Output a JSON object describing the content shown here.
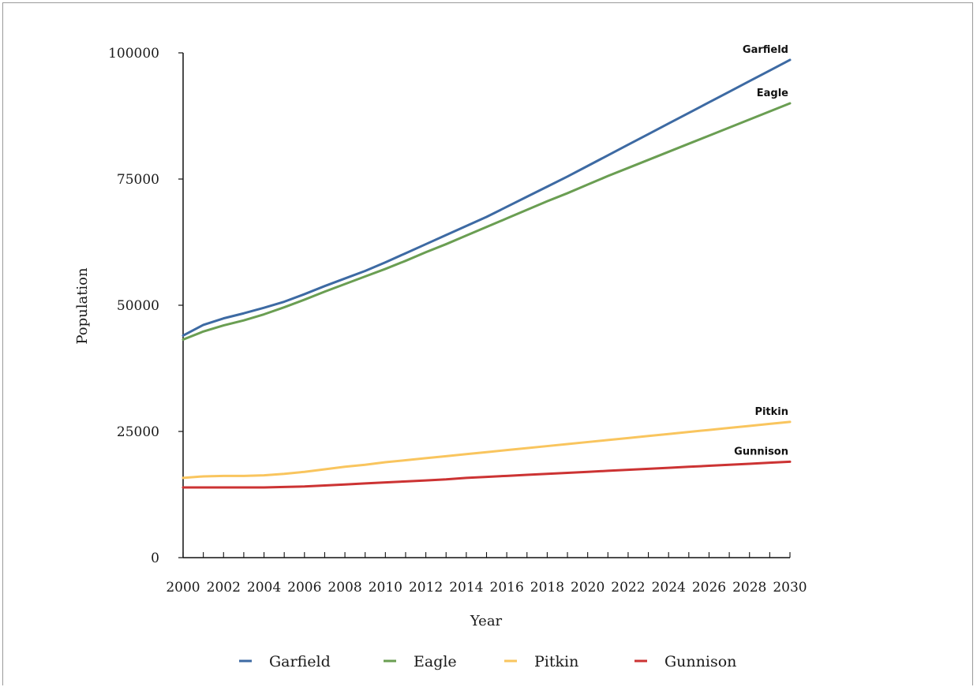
{
  "chart_data": {
    "type": "line",
    "xlabel": "Year",
    "ylabel": "Population",
    "xlim": [
      2000,
      2030
    ],
    "ylim": [
      0,
      100000
    ],
    "x_ticks": [
      2000,
      2002,
      2004,
      2006,
      2008,
      2010,
      2012,
      2014,
      2016,
      2018,
      2020,
      2022,
      2024,
      2026,
      2028,
      2030
    ],
    "y_ticks": [
      0,
      25000,
      50000,
      75000,
      100000
    ],
    "legend_position": "bottom",
    "grid": false,
    "x": [
      2000,
      2001,
      2002,
      2003,
      2004,
      2005,
      2006,
      2007,
      2008,
      2009,
      2010,
      2011,
      2012,
      2013,
      2014,
      2015,
      2016,
      2017,
      2018,
      2019,
      2020,
      2021,
      2022,
      2023,
      2024,
      2025,
      2026,
      2027,
      2028,
      2029,
      2030
    ],
    "series": [
      {
        "name": "Garfield",
        "color": "#3d6aa3",
        "values": [
          44000,
          46100,
          47400,
          48400,
          49500,
          50700,
          52200,
          53800,
          55300,
          56800,
          58500,
          60300,
          62100,
          63900,
          65700,
          67500,
          69500,
          71500,
          73500,
          75500,
          77600,
          79700,
          81800,
          83900,
          86000,
          88100,
          90200,
          92300,
          94400,
          96500,
          98600
        ]
      },
      {
        "name": "Eagle",
        "color": "#6a9e52",
        "values": [
          43200,
          44800,
          46000,
          47000,
          48200,
          49600,
          51100,
          52700,
          54200,
          55700,
          57200,
          58800,
          60500,
          62100,
          63800,
          65500,
          67200,
          68900,
          70600,
          72200,
          73900,
          75600,
          77200,
          78800,
          80400,
          82000,
          83600,
          85200,
          86800,
          88400,
          90000
        ]
      },
      {
        "name": "Pitkin",
        "color": "#f9c55e",
        "values": [
          15800,
          16100,
          16200,
          16200,
          16300,
          16600,
          17000,
          17500,
          18000,
          18400,
          18900,
          19300,
          19700,
          20100,
          20500,
          20900,
          21300,
          21700,
          22100,
          22500,
          22900,
          23300,
          23700,
          24100,
          24500,
          24900,
          25300,
          25700,
          26100,
          26500,
          26900
        ]
      },
      {
        "name": "Gunnison",
        "color": "#cc3333",
        "values": [
          13900,
          13900,
          13900,
          13900,
          13900,
          14000,
          14100,
          14300,
          14500,
          14700,
          14900,
          15100,
          15300,
          15500,
          15800,
          16000,
          16200,
          16400,
          16600,
          16800,
          17000,
          17200,
          17400,
          17600,
          17800,
          18000,
          18200,
          18400,
          18600,
          18800,
          19000
        ]
      }
    ]
  }
}
